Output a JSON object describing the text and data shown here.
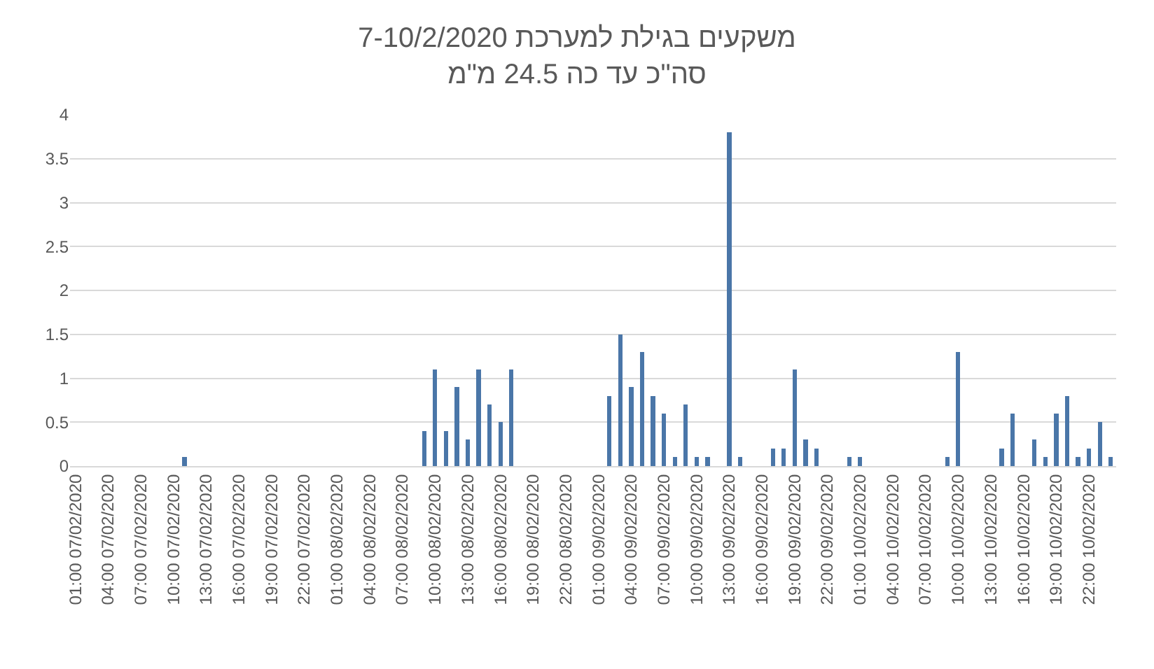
{
  "chart_data": {
    "type": "bar",
    "title": "משקעים בגילת למערכת 7-10/2/2020",
    "subtitle": "סה\"כ עד כה 24.5 מ\"מ",
    "categories": [
      "01:00 07/02/2020",
      null,
      null,
      "04:00 07/02/2020",
      null,
      null,
      "07:00 07/02/2020",
      null,
      null,
      "10:00 07/02/2020",
      null,
      null,
      "13:00 07/02/2020",
      null,
      null,
      "16:00 07/02/2020",
      null,
      null,
      "19:00 07/02/2020",
      null,
      null,
      "22:00 07/02/2020",
      null,
      null,
      "01:00 08/02/2020",
      null,
      null,
      "04:00 08/02/2020",
      null,
      null,
      "07:00 08/02/2020",
      null,
      null,
      "10:00 08/02/2020",
      null,
      null,
      "13:00 08/02/2020",
      null,
      null,
      "16:00 08/02/2020",
      null,
      null,
      "19:00 08/02/2020",
      null,
      null,
      "22:00 08/02/2020",
      null,
      null,
      "01:00 09/02/2020",
      null,
      null,
      "04:00 09/02/2020",
      null,
      null,
      "07:00 09/02/2020",
      null,
      null,
      "10:00 09/02/2020",
      null,
      null,
      "13:00 09/02/2020",
      null,
      null,
      "16:00 09/02/2020",
      null,
      null,
      "19:00 09/02/2020",
      null,
      null,
      "22:00 09/02/2020",
      null,
      null,
      "01:00 10/02/2020",
      null,
      null,
      "04:00 10/02/2020",
      null,
      null,
      "07:00 10/02/2020",
      null,
      null,
      "10:00 10/02/2020",
      null,
      null,
      "13:00 10/02/2020",
      null,
      null,
      "16:00 10/02/2020",
      null,
      null,
      "19:00 10/02/2020",
      null,
      null,
      "22:00 10/02/2020",
      null,
      null
    ],
    "values": [
      0,
      0,
      0,
      0,
      0,
      0,
      0,
      0,
      0,
      0,
      0.1,
      0,
      0,
      0,
      0,
      0,
      0,
      0,
      0,
      0,
      0,
      0,
      0,
      0,
      0,
      0,
      0,
      0,
      0,
      0,
      0,
      0,
      0.4,
      1.1,
      0.4,
      0.9,
      0.3,
      1.1,
      0.7,
      0.5,
      1.1,
      0,
      0,
      0,
      0,
      0,
      0,
      0,
      0,
      0.8,
      1.5,
      0.9,
      1.3,
      0.8,
      0.6,
      0.1,
      0.7,
      0.1,
      0.1,
      0,
      3.8,
      0.1,
      0,
      0,
      0.2,
      0.2,
      1.1,
      0.3,
      0.2,
      0,
      0,
      0.1,
      0.1,
      0,
      0,
      0,
      0,
      0,
      0,
      0,
      0.1,
      1.3,
      0,
      0,
      0,
      0.2,
      0.6,
      0,
      0.3,
      0.1,
      0.6,
      0.8,
      0.1,
      0.2,
      0.5,
      0.1
    ],
    "color": "#4a76a8",
    "ylim": [
      0,
      4
    ],
    "yticks": [
      0,
      0.5,
      1,
      1.5,
      2,
      2.5,
      3,
      3.5,
      4
    ],
    "grid": "y"
  }
}
